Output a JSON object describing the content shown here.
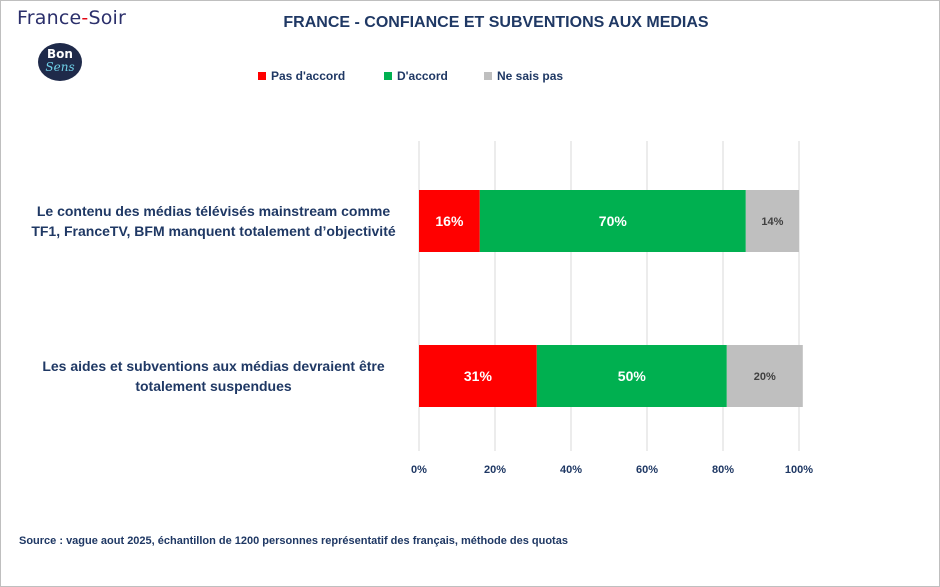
{
  "brand": {
    "name_left": "France",
    "name_dash": "-",
    "name_right": "Soir",
    "badge_top": "Bon",
    "badge_bottom": "Sens"
  },
  "colors": {
    "pas_daccord": "#ff0000",
    "daccord": "#00b050",
    "ne_sais_pas": "#bfbfbf",
    "text": "#1f3864"
  },
  "chart_data": {
    "type": "bar",
    "orientation": "horizontal",
    "stacked": true,
    "title": "FRANCE - CONFIANCE ET SUBVENTIONS AUX MEDIAS",
    "categories": [
      "Le contenu des médias télévisés mainstream comme TF1, FranceTV, BFM manquent totalement d’objectivité",
      "Les aides et subventions aux médias devraient être totalement suspendues"
    ],
    "series": [
      {
        "name": "Pas d'accord",
        "color": "#ff0000",
        "values": [
          16,
          31
        ],
        "labels": [
          "16%",
          "31%"
        ]
      },
      {
        "name": "D'accord",
        "color": "#00b050",
        "values": [
          70,
          50
        ],
        "labels": [
          "70%",
          "50%"
        ]
      },
      {
        "name": "Ne sais pas",
        "color": "#bfbfbf",
        "values": [
          14,
          20
        ],
        "labels": [
          "14%",
          "20%"
        ]
      }
    ],
    "xlim": [
      0,
      100
    ],
    "xticks": [
      "0%",
      "20%",
      "40%",
      "60%",
      "80%",
      "100%"
    ],
    "grid": true,
    "legend_position": "top"
  },
  "source": "Source : vague aout 2025, échantillon de 1200 personnes représentatif des français, méthode des quotas"
}
